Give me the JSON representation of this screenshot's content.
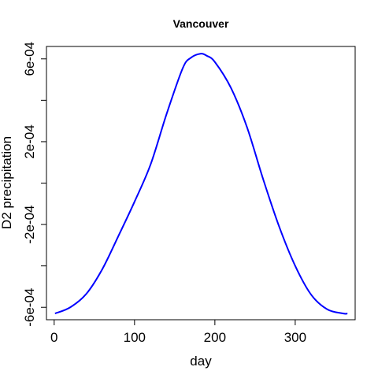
{
  "chart_data": {
    "type": "line",
    "title": "Vancouver",
    "xlabel": "day",
    "ylabel": "D2 precipitation",
    "xlim": [
      -9.6,
      374.6
    ],
    "ylim": [
      -0.00066,
      0.00066
    ],
    "x_ticks": [
      0,
      100,
      200,
      300
    ],
    "x_tick_labels": [
      "0",
      "100",
      "200",
      "300"
    ],
    "y_ticks": [
      -0.0006,
      -0.0004,
      -0.0002,
      0,
      0.0002,
      0.0004,
      0.0006
    ],
    "y_tick_labels": [
      "-6e-04",
      "",
      "-2e-04",
      "",
      "2e-04",
      "",
      "6e-04"
    ],
    "grid": false,
    "series": [
      {
        "color": "#0000ff",
        "x": [
          1,
          20,
          40,
          60,
          80,
          100,
          120,
          140,
          160,
          170,
          182,
          190,
          200,
          220,
          240,
          260,
          280,
          300,
          320,
          340,
          360,
          365
        ],
        "y": [
          -0.00063,
          -0.0006,
          -0.000535,
          -0.000415,
          -0.000255,
          -9e-05,
          9e-05,
          0.000335,
          0.000555,
          0.000605,
          0.000625,
          0.000615,
          0.000585,
          0.00046,
          0.00027,
          2e-05,
          -0.00021,
          -0.0004,
          -0.00054,
          -0.00061,
          -0.00063,
          -0.00063
        ]
      }
    ]
  }
}
